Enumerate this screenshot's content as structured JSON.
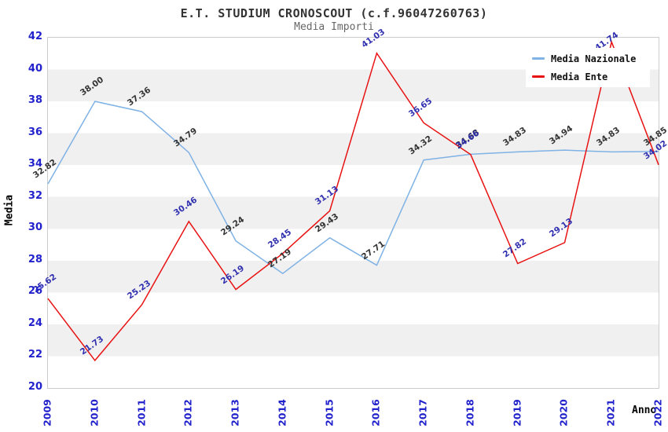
{
  "chart_data": {
    "type": "line",
    "title": "E.T. STUDIUM CRONOSCOUT (c.f.96047260763)",
    "subtitle": "Media Importi",
    "xlabel": "Anno",
    "ylabel": "Media",
    "x": [
      "2009",
      "2010",
      "2011",
      "2012",
      "2013",
      "2014",
      "2015",
      "2016",
      "2017",
      "2018",
      "2019",
      "2020",
      "2021",
      "2022"
    ],
    "series": [
      {
        "name": "Media Nazionale",
        "color": "#7fb2e5",
        "label_color": "#333333",
        "values": [
          32.82,
          38.0,
          37.36,
          34.79,
          29.24,
          27.19,
          29.43,
          27.71,
          34.32,
          34.68,
          34.83,
          34.94,
          34.83,
          34.85
        ]
      },
      {
        "name": "Media Ente",
        "color": "#e81212",
        "label_color": "#3030b0",
        "values": [
          25.62,
          21.73,
          25.23,
          30.46,
          26.19,
          28.45,
          31.13,
          41.03,
          36.65,
          34.66,
          27.82,
          29.13,
          41.74,
          34.02
        ]
      }
    ],
    "ylim": [
      20,
      42
    ],
    "yticks": [
      20,
      22,
      24,
      26,
      28,
      30,
      32,
      34,
      36,
      38,
      40,
      42
    ],
    "grid": "alternating-horizontal-bands",
    "legend_position": "top-right",
    "value_label_decimals": 2
  },
  "colors": {
    "background": "#ffffff",
    "band": "#f0f0f0",
    "plot_border": "#cccccc",
    "tick_label": "#2222cc",
    "title": "#333333",
    "subtitle": "#666666",
    "axis_title": "#000000",
    "legend_text": "#111111"
  }
}
